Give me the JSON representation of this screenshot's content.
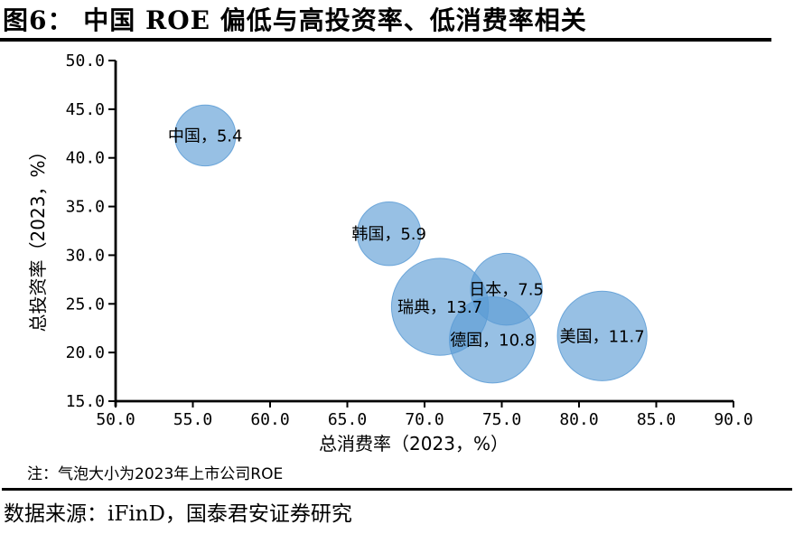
{
  "page": {
    "title": "图6：  中国 ROE 偏低与高投资率、低消费率相关",
    "note": "注：气泡大小为2023年上市公司ROE",
    "source": "数据来源：iFinD，国泰君安证券研究"
  },
  "chart_data": {
    "type": "scatter",
    "subtype": "bubble",
    "title": "中国 ROE 偏低与高投资率、低消费率相关",
    "xlabel": "总消费率（2023，%）",
    "ylabel": "总投资率（2023，%）",
    "xlim": [
      50.0,
      90.0
    ],
    "xstep": 5.0,
    "ylim": [
      15.0,
      50.0
    ],
    "ystep": 5.0,
    "grid": false,
    "legend": "none",
    "bubble_size_meaning": "2023年上市公司ROE",
    "bubble_color": "#5B9BD5",
    "bubble_opacity": 0.63,
    "axis_color": "#000000",
    "points": [
      {
        "name": "中国",
        "label": "中国，5.4",
        "x": 55.8,
        "y": 42.3,
        "size": 5.4
      },
      {
        "name": "韩国",
        "label": "韩国，5.9",
        "x": 67.7,
        "y": 32.2,
        "size": 5.9
      },
      {
        "name": "瑞典",
        "label": "瑞典，13.7",
        "x": 71.0,
        "y": 24.7,
        "size": 13.7
      },
      {
        "name": "日本",
        "label": "日本，7.5",
        "x": 75.3,
        "y": 26.5,
        "size": 7.5
      },
      {
        "name": "德国",
        "label": "德国，10.8",
        "x": 74.4,
        "y": 21.3,
        "size": 10.8
      },
      {
        "name": "美国",
        "label": "美国，11.7",
        "x": 81.5,
        "y": 21.7,
        "size": 11.7
      }
    ]
  }
}
